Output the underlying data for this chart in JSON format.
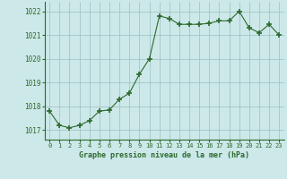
{
  "x": [
    0,
    1,
    2,
    3,
    4,
    5,
    6,
    7,
    8,
    9,
    10,
    11,
    12,
    13,
    14,
    15,
    16,
    17,
    18,
    19,
    20,
    21,
    22,
    23
  ],
  "y": [
    1017.8,
    1017.2,
    1017.1,
    1017.2,
    1017.4,
    1017.8,
    1017.85,
    1018.3,
    1018.55,
    1019.35,
    1020.0,
    1021.8,
    1021.7,
    1021.45,
    1021.45,
    1021.45,
    1021.5,
    1021.6,
    1021.6,
    1022.0,
    1021.3,
    1021.1,
    1021.45,
    1021.0
  ],
  "line_color": "#2d6a2d",
  "marker": "+",
  "marker_size": 5,
  "bg_color": "#cce8e8",
  "grid_color": "#9bbfbf",
  "ylabel_ticks": [
    1017,
    1018,
    1019,
    1020,
    1021,
    1022
  ],
  "xlabel_ticks": [
    0,
    1,
    2,
    3,
    4,
    5,
    6,
    7,
    8,
    9,
    10,
    11,
    12,
    13,
    14,
    15,
    16,
    17,
    18,
    19,
    20,
    21,
    22,
    23
  ],
  "xlabel_labels": [
    "0",
    "1",
    "2",
    "3",
    "4",
    "5",
    "6",
    "7",
    "8",
    "9",
    "10",
    "11",
    "12",
    "13",
    "14",
    "15",
    "16",
    "17",
    "18",
    "19",
    "20",
    "21",
    "22",
    "23"
  ],
  "xlabel": "Graphe pression niveau de la mer (hPa)",
  "ylim": [
    1016.6,
    1022.4
  ],
  "xlim": [
    -0.5,
    23.5
  ]
}
